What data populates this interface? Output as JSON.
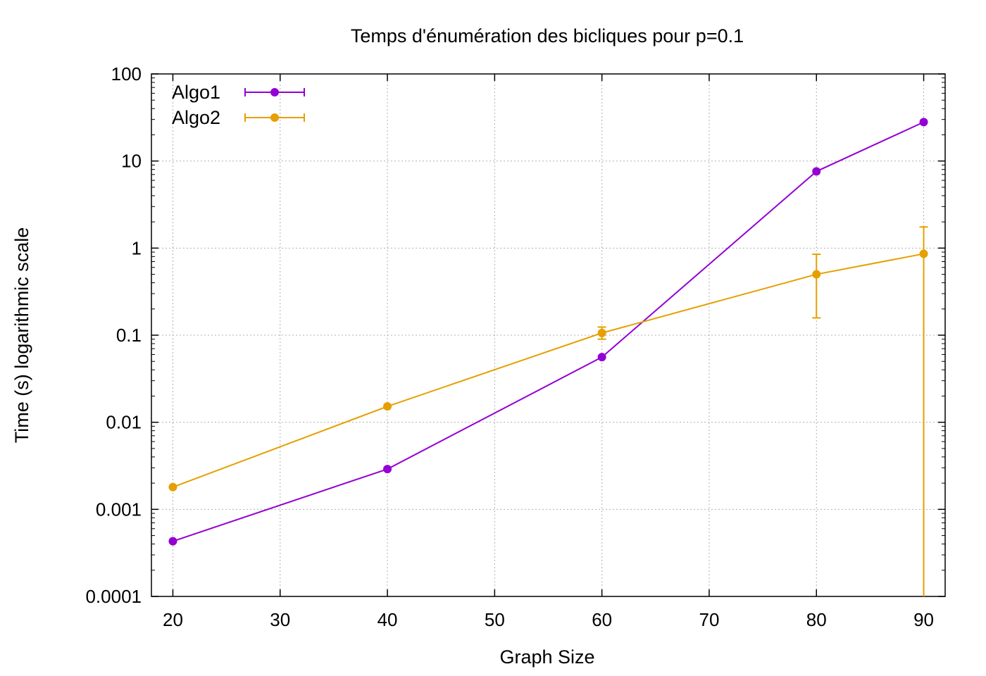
{
  "chart_data": {
    "type": "line",
    "title": "Temps d'énumération des bicliques pour p=0.1",
    "xlabel": "Graph Size",
    "ylabel": "Time (s) logarithmic scale",
    "xlim": [
      18,
      92
    ],
    "ylim": [
      0.0001,
      100
    ],
    "yscale": "log",
    "grid": true,
    "legend_position": "top-left",
    "x_ticks": [
      20,
      30,
      40,
      50,
      60,
      70,
      80,
      90
    ],
    "x_tick_labels": [
      "20",
      "30",
      "40",
      "50",
      "60",
      "70",
      "80",
      "90"
    ],
    "y_ticks": [
      0.0001,
      0.001,
      0.01,
      0.1,
      1,
      10,
      100
    ],
    "y_tick_labels": [
      "0.0001",
      "0.001",
      "0.01",
      "0.1",
      "1",
      "10",
      "100"
    ],
    "series": [
      {
        "name": "Algo1",
        "color": "#9400d3",
        "x": [
          20,
          40,
          60,
          80,
          90
        ],
        "y": [
          0.00043,
          0.0029,
          0.056,
          7.6,
          28
        ],
        "err_low": [
          0.00043,
          0.0029,
          0.056,
          7.6,
          28
        ],
        "err_high": [
          0.00043,
          0.0029,
          0.056,
          7.6,
          28
        ]
      },
      {
        "name": "Algo2",
        "color": "#e69f00",
        "x": [
          20,
          40,
          60,
          80,
          90
        ],
        "y": [
          0.0018,
          0.0152,
          0.106,
          0.5,
          0.86
        ],
        "err_low": [
          0.0018,
          0.0152,
          0.09,
          0.158,
          0.0001
        ],
        "err_high": [
          0.0018,
          0.0152,
          0.124,
          0.85,
          1.75
        ]
      }
    ]
  }
}
